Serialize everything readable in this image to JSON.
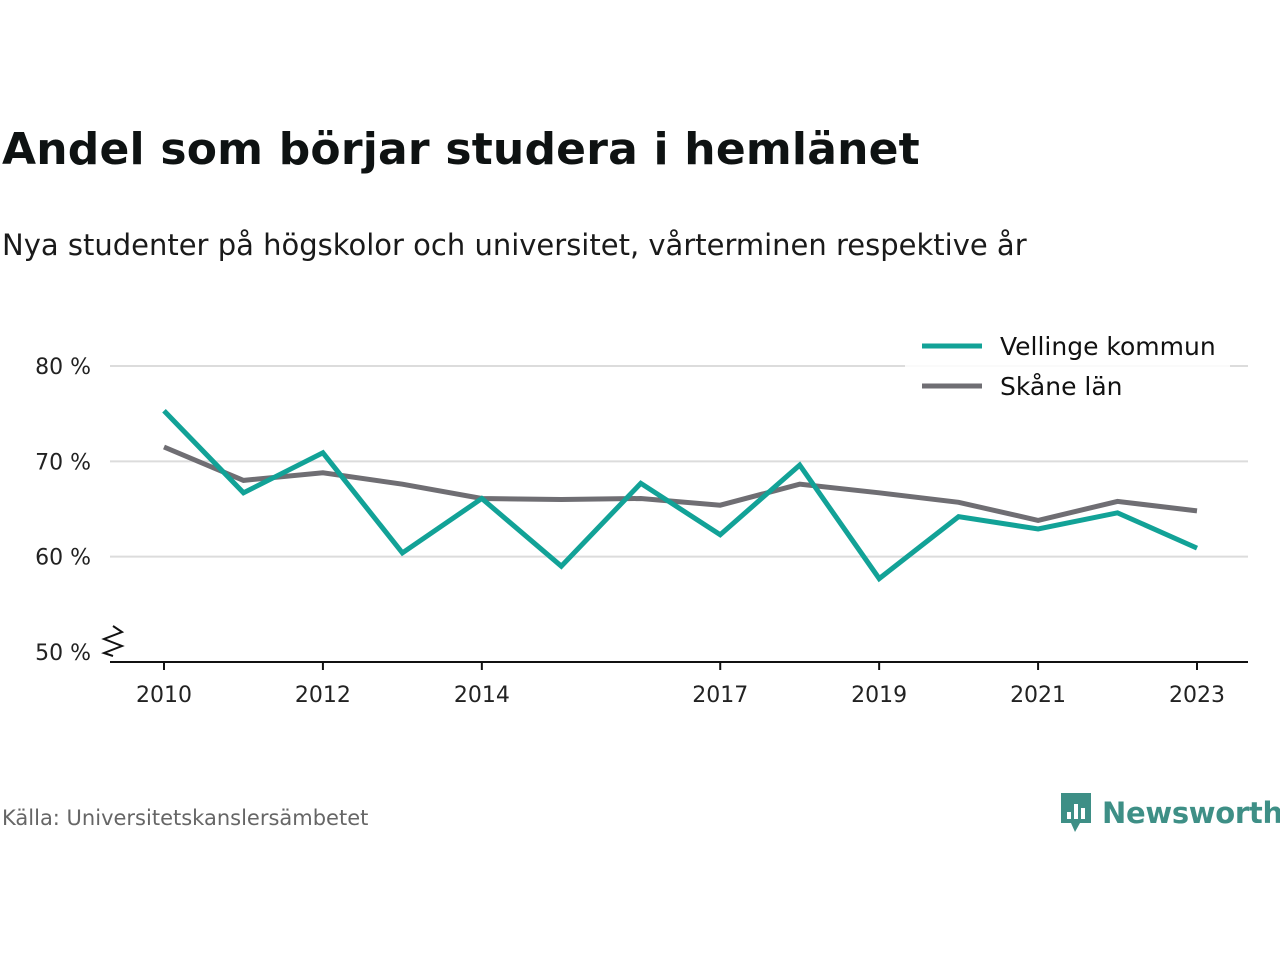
{
  "title": "Andel som börjar studera i hemlänet",
  "subtitle": "Nya studenter på högskolor och universitet, vårterminen respektive år",
  "source": "Källa: Universitetskanslersämbetet",
  "brand": {
    "name": "Newsworthy",
    "icon": "newsworthy-logo-icon",
    "color": "#3e8f86"
  },
  "chart_data": {
    "type": "line",
    "title": "Andel som börjar studera i hemlänet",
    "subtitle": "Nya studenter på högskolor och universitet, vårterminen respektive år",
    "x": [
      2010,
      2011,
      2012,
      2013,
      2014,
      2015,
      2016,
      2017,
      2018,
      2019,
      2020,
      2021,
      2022,
      2023
    ],
    "x_tick_labels": [
      "2010",
      "2012",
      "2014",
      "2017",
      "2019",
      "2021",
      "2023"
    ],
    "x_tick_values": [
      2010,
      2012,
      2014,
      2017,
      2019,
      2021,
      2023
    ],
    "y_tick_labels": [
      "80 %",
      "70 %",
      "60 %",
      "50 %"
    ],
    "y_tick_values": [
      80,
      70,
      60,
      50
    ],
    "ylim": [
      50,
      80
    ],
    "y_axis_break": true,
    "grid": true,
    "legend_position": "top-right",
    "series": [
      {
        "name": "Vellinge kommun",
        "color": "#12a297",
        "values": [
          75.3,
          66.7,
          70.9,
          60.4,
          66.1,
          59.0,
          67.7,
          62.3,
          69.6,
          57.7,
          64.2,
          62.9,
          64.6,
          60.9
        ]
      },
      {
        "name": "Skåne län",
        "color": "#6f6e73",
        "values": [
          71.5,
          68.0,
          68.8,
          67.6,
          66.1,
          66.0,
          66.1,
          65.4,
          67.6,
          66.7,
          65.7,
          63.8,
          65.8,
          64.8
        ]
      }
    ]
  }
}
